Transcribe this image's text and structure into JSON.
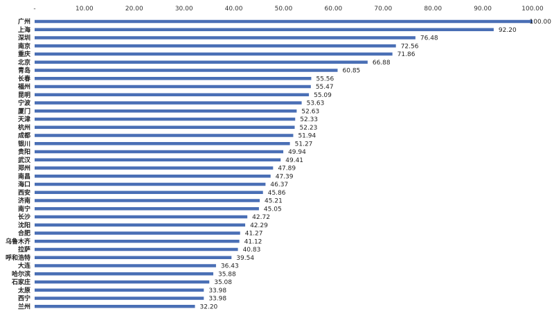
{
  "chart_data": {
    "type": "bar",
    "orientation": "horizontal",
    "categories": [
      "广州",
      "上海",
      "深圳",
      "南京",
      "重庆",
      "北京",
      "青岛",
      "长春",
      "福州",
      "昆明",
      "宁波",
      "厦门",
      "天津",
      "杭州",
      "成都",
      "银川",
      "贵阳",
      "武汉",
      "郑州",
      "南昌",
      "海口",
      "西安",
      "济南",
      "南宁",
      "长沙",
      "沈阳",
      "合肥",
      "乌鲁木齐",
      "拉萨",
      "呼和浩特",
      "大连",
      "哈尔滨",
      "石家庄",
      "太原",
      "西宁",
      "兰州"
    ],
    "values": [
      100.0,
      92.2,
      76.48,
      72.56,
      71.86,
      66.88,
      60.85,
      55.56,
      55.47,
      55.09,
      53.63,
      52.63,
      52.33,
      52.23,
      51.94,
      51.27,
      49.94,
      49.41,
      47.89,
      47.39,
      46.37,
      45.86,
      45.21,
      45.05,
      42.72,
      42.29,
      41.27,
      41.12,
      40.83,
      39.54,
      36.43,
      35.88,
      35.08,
      33.98,
      33.98,
      32.2
    ],
    "value_labels": [
      "100.00",
      "92.20",
      "76.48",
      "72.56",
      "71.86",
      "66.88",
      "60.85",
      "55.56",
      "55.47",
      "55.09",
      "53.63",
      "52.63",
      "52.33",
      "52.23",
      "51.94",
      "51.27",
      "49.94",
      "49.41",
      "47.89",
      "47.39",
      "46.37",
      "45.86",
      "45.21",
      "45.05",
      "42.72",
      "42.29",
      "41.27",
      "41.12",
      "40.83",
      "39.54",
      "36.43",
      "35.88",
      "35.08",
      "33.98",
      "33.98",
      "32.20"
    ],
    "x_ticks": [
      0,
      10,
      20,
      30,
      40,
      50,
      60,
      70,
      80,
      90,
      100
    ],
    "x_tick_labels": [
      "-",
      "10.00",
      "20.00",
      "30.00",
      "40.00",
      "50.00",
      "60.00",
      "70.00",
      "80.00",
      "90.00",
      "100.00"
    ],
    "xlim": [
      0,
      100
    ],
    "axis_position": "top",
    "grid": false,
    "bar_color": "#4a6fb5"
  }
}
